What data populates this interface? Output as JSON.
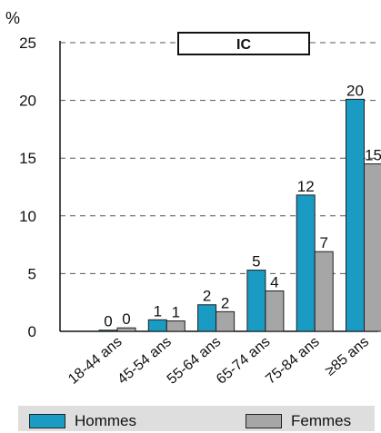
{
  "chart_data": {
    "type": "bar",
    "title": "IC",
    "ylabel": "%",
    "xlabel": "",
    "ylim": [
      0,
      25
    ],
    "yticks": [
      0,
      5,
      10,
      15,
      20,
      25
    ],
    "grid": "dashed-horizontal",
    "categories": [
      "18-44 ans",
      "45-54 ans",
      "55-64 ans",
      "65-74 ans",
      "75-84 ans",
      "≥85 ans"
    ],
    "series": [
      {
        "name": "Hommes",
        "color": "#1a9bc4",
        "values": [
          0.1,
          1,
          2.3,
          5.3,
          11.8,
          20.1
        ],
        "labels": [
          "0",
          "1",
          "2",
          "5",
          "12",
          "20"
        ]
      },
      {
        "name": "Femmes",
        "color": "#a6a6a6",
        "values": [
          0.3,
          0.9,
          1.7,
          3.5,
          6.9,
          14.5
        ],
        "labels": [
          "0",
          "1",
          "2",
          "4",
          "7",
          "15"
        ]
      }
    ],
    "legend": "bottom"
  }
}
